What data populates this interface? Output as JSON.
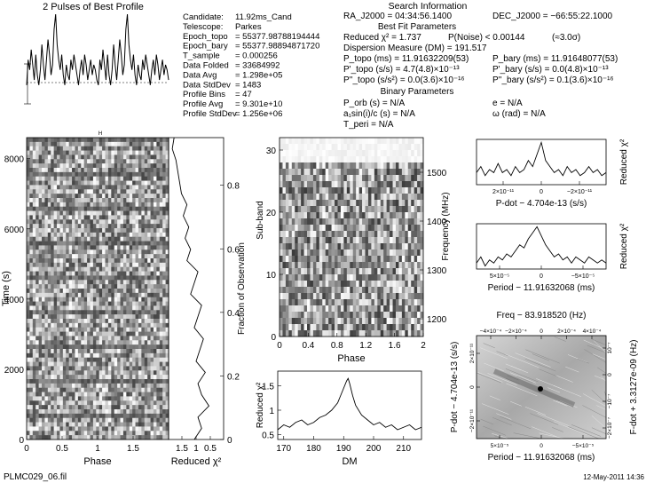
{
  "title": "2 Pulses of Best Profile",
  "footer": {
    "filename": "PLMC029_06.fil",
    "date": "12-May-2011 14:36"
  },
  "info_left": [
    {
      "label": "Candidate:",
      "value": "11.92ms_Cand"
    },
    {
      "label": "Telescope:",
      "value": "Parkes"
    },
    {
      "label": "Epoch_topo",
      "value": "= 55377.98788194444"
    },
    {
      "label": "Epoch_bary",
      "value": "= 55377.98894871720"
    },
    {
      "label": "T_sample",
      "value": "= 0.000256"
    },
    {
      "label": "Data Folded",
      "value": "= 33684992"
    },
    {
      "label": "Data Avg",
      "value": "= 1.298e+05"
    },
    {
      "label": "Data StdDev",
      "value": "= 1483"
    },
    {
      "label": "Profile Bins",
      "value": "= 47"
    },
    {
      "label": "Profile Avg",
      "value": "= 9.301e+10"
    },
    {
      "label": "Profile StdDev",
      "value": "= 1.256e+06"
    }
  ],
  "search_info": {
    "header": "Search Information",
    "ra": "RA_J2000 = 04:34:56.1400",
    "dec": "DEC_J2000 = −66:55:22.1000",
    "best_fit_header": "Best Fit Parameters",
    "reduced_chi2": "Reduced χ² = 1.737",
    "p_noise": "P(Noise) < 0.00144",
    "sigma": "(≈3.0σ)",
    "dm": "Dispersion Measure (DM) = 191.517",
    "p_topo": "P_topo (ms) = 11.91632209(53)",
    "p_bary": "P_bary (ms) = 11.91648077(53)",
    "pdot_topo": "P'_topo (s/s) = 4.7(4.8)×10⁻¹³",
    "pdot_bary": "P'_bary (s/s) = 0.0(4.8)×10⁻¹³",
    "pddot_topo": "P''_topo (s/s²) = 0.0(3.6)×10⁻¹⁶",
    "pddot_bary": "P''_bary (s/s²) = 0.1(3.6)×10⁻¹⁶",
    "binary_header": "Binary Parameters",
    "p_orb": "P_orb (s) = N/A",
    "e": "e = N/A",
    "a1sini": "a₁sin(i)/c (s) = N/A",
    "omega": "ω (rad) = N/A",
    "t_peri": "T_peri = N/A"
  },
  "chart_data": [
    {
      "type": "line",
      "name": "profile",
      "title": "2 Pulses of Best Profile",
      "xlim": [
        0,
        2
      ],
      "values": [
        0.3,
        0.55,
        0.45,
        0.65,
        0.5,
        0.35,
        0.6,
        0.4,
        0.3,
        0.45,
        0.7,
        0.5,
        0.35,
        0.55,
        0.75,
        0.6,
        0.4,
        0.5,
        0.85,
        1.0,
        0.7,
        0.55,
        0.45,
        0.6,
        0.4,
        0.3,
        0.5,
        0.4,
        0.35,
        0.55,
        0.45,
        0.6,
        0.5,
        0.4,
        0.3,
        0.45,
        0.55,
        0.4,
        0.6,
        0.5,
        0.35,
        0.45,
        0.55,
        0.4,
        0.5,
        0.45,
        0.35
      ]
    },
    {
      "type": "heatmap",
      "name": "time-phase",
      "xlabel": "Phase",
      "ylabel": "Time (s)",
      "xlim": [
        0,
        2
      ],
      "ylim": [
        0,
        8600
      ],
      "xticks": [
        "0",
        "0.5",
        "1",
        "1.5"
      ],
      "yticks": [
        "0",
        "2000",
        "4000",
        "6000",
        "8000"
      ]
    },
    {
      "type": "line",
      "name": "time-chi2",
      "xlabel": "Reduced χ²",
      "ylabel": "Fraction of Observation",
      "xticks": [
        "1.5",
        "1",
        "0.5"
      ],
      "yticks": [
        "0",
        "0.2",
        "0.4",
        "0.6",
        "0.8"
      ],
      "values": [
        1.1,
        0.9,
        1.0,
        0.7,
        0.9,
        1.0,
        0.8,
        1.05,
        0.95,
        0.85,
        1.1,
        1.0,
        0.9,
        1.2,
        1.1,
        1.0,
        1.3,
        1.2,
        1.35,
        1.25,
        1.4,
        1.3,
        1.45,
        1.5,
        1.55,
        1.6,
        1.7,
        1.65
      ]
    },
    {
      "type": "heatmap",
      "name": "subband-phase",
      "xlabel": "Phase",
      "ylabel": "Sub-band",
      "y2label": "Frequency (MHz)",
      "xlim": [
        0,
        2
      ],
      "ylim": [
        0,
        32
      ],
      "xticks": [
        "0",
        "0.4",
        "0.8",
        "1.2",
        "1.6",
        "2"
      ],
      "yticks": [
        "0",
        "10",
        "20",
        "30"
      ],
      "y2ticks": [
        "1200",
        "1300",
        "1400",
        "1500"
      ]
    },
    {
      "type": "line",
      "name": "dm-chi2",
      "xlabel": "DM",
      "ylabel": "Reduced χ²",
      "xlim": [
        168,
        216
      ],
      "ylim": [
        0.4,
        1.8
      ],
      "xticks": [
        "170",
        "180",
        "190",
        "200",
        "210"
      ],
      "yticks": [
        "0.5",
        "1",
        "1.5"
      ],
      "x": [
        168,
        170,
        172,
        174,
        176,
        178,
        180,
        182,
        184,
        186,
        188,
        189,
        190,
        191,
        191.5,
        192,
        193,
        194,
        196,
        198,
        200,
        202,
        204,
        206,
        208,
        210,
        212,
        214,
        216
      ],
      "values": [
        0.6,
        0.7,
        0.65,
        0.75,
        0.8,
        0.7,
        0.75,
        0.85,
        0.9,
        1.0,
        1.15,
        1.3,
        1.45,
        1.6,
        1.65,
        1.55,
        1.3,
        1.1,
        0.9,
        0.8,
        0.7,
        0.75,
        0.65,
        0.7,
        0.6,
        0.65,
        0.7,
        0.6,
        0.65
      ]
    },
    {
      "type": "line",
      "name": "pdot-chi2",
      "xlabel": "P-dot − 4.704e-13 (s/s)",
      "ylabel": "Reduced χ²",
      "xticks": [
        "2×10⁻¹¹",
        "0",
        "−2×10⁻¹¹"
      ],
      "values": [
        0.5,
        0.6,
        0.45,
        0.55,
        0.5,
        0.65,
        0.5,
        0.55,
        0.45,
        0.6,
        0.5,
        0.55,
        0.7,
        0.6,
        0.8,
        1.0,
        0.7,
        0.6,
        0.5,
        0.55,
        0.45,
        0.6,
        0.5,
        0.55,
        0.45,
        0.5,
        0.6,
        0.5,
        0.55,
        0.45,
        0.5
      ]
    },
    {
      "type": "line",
      "name": "period-chi2",
      "xlabel": "Period − 11.91632068 (ms)",
      "ylabel": "Reduced χ²",
      "xticks": [
        "5×10⁻⁵",
        "0",
        "−5×10⁻⁵"
      ],
      "values": [
        0.4,
        0.5,
        0.35,
        0.45,
        0.4,
        0.5,
        0.45,
        0.55,
        0.5,
        0.6,
        0.7,
        0.65,
        0.8,
        0.9,
        1.0,
        0.85,
        0.7,
        0.6,
        0.5,
        0.55,
        0.45,
        0.5,
        0.4,
        0.5,
        0.45,
        0.4,
        0.5,
        0.45,
        0.4,
        0.45,
        0.4
      ]
    },
    {
      "type": "heatmap",
      "name": "period-pdot",
      "title": "Freq − 83.918520 (Hz)",
      "xlabel": "Period − 11.91632068 (ms)",
      "ylabel": "P-dot − 4.704e-13 (s/s)",
      "y2label": "F-dot + 3.3127e-09 (Hz)",
      "top_ticks": [
        "−4×10⁻⁴",
        "−2×10⁻⁴",
        "0",
        "2×10⁻⁴",
        "4×10⁻⁴"
      ],
      "bottom_ticks": [
        "5×10⁻⁵",
        "0",
        "−5×10⁻⁵"
      ],
      "left_ticks": [
        "2×10⁻¹¹",
        "0",
        "−2×10⁻¹¹"
      ],
      "right_ticks": [
        "10⁻⁷",
        "0",
        "−10⁻⁷",
        "−2×10⁻⁷"
      ]
    }
  ]
}
